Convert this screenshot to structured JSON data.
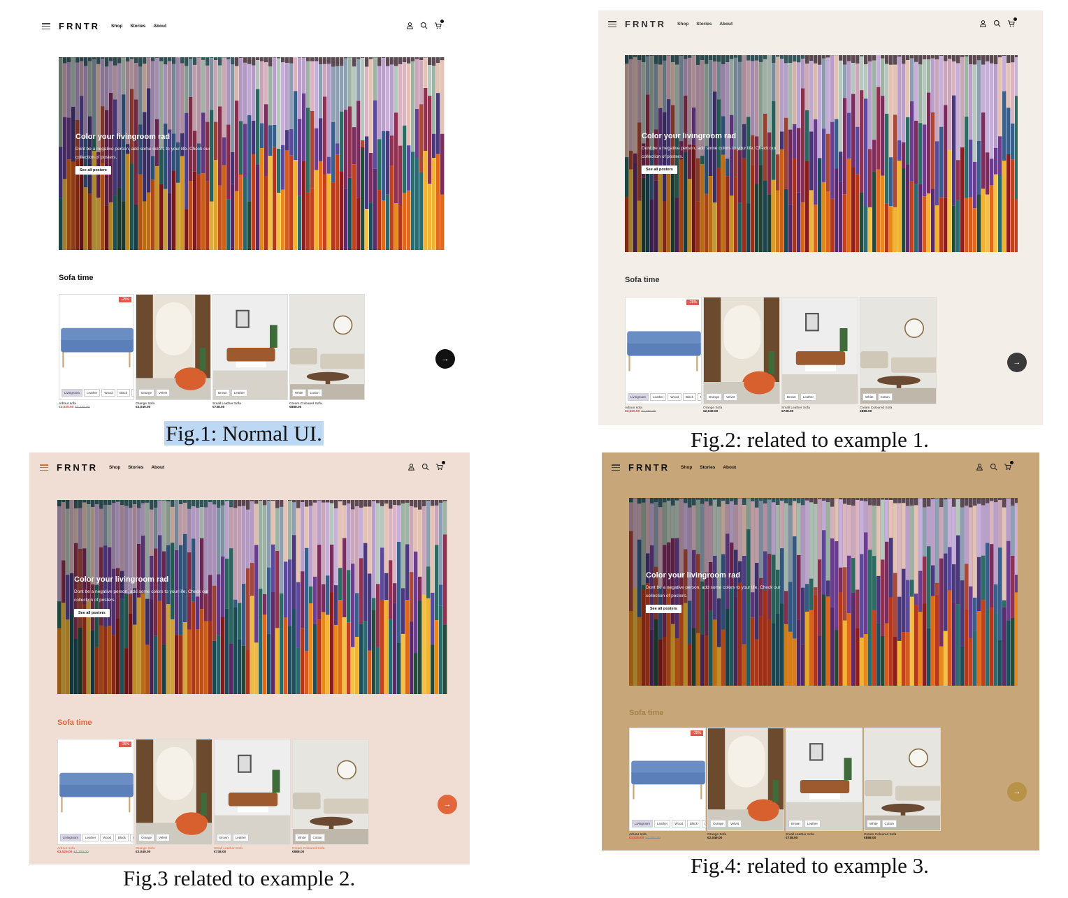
{
  "captions": [
    "Fig.1: Normal UI.",
    "Fig.2: related to example 1.",
    "Fig.3 related to example 2.",
    "Fig.4: related to example 3."
  ],
  "nav": {
    "logo": "FRNTR",
    "links": [
      "Shop",
      "Stories",
      "About"
    ],
    "icons": [
      "user-icon",
      "search-icon",
      "cart-icon"
    ]
  },
  "hero": {
    "title": "Color your livingroom rad",
    "description": "Dont be a negative person, add some colors to your life. Check our collection of posters.",
    "button": "See all posters"
  },
  "section": {
    "title": "Sofa time"
  },
  "products": [
    {
      "name": "Arbour sofa",
      "price": "€3,525.00",
      "old_price": "€4,700.00",
      "badge": "-25%",
      "chips": [
        "Livingroom",
        "Leather",
        "Wood",
        "Black",
        "Pug"
      ]
    },
    {
      "name": "Orange Sofa",
      "price": "€2,049.00",
      "chips": [
        "Orange",
        "Velvet"
      ]
    },
    {
      "name": "Small Leather Sofa",
      "price": "€738.00",
      "chips": [
        "Brown",
        "Leather"
      ]
    },
    {
      "name": "Cream Coloured Sofa",
      "price": "€888.00",
      "chips": [
        "White",
        "Cotton"
      ]
    }
  ],
  "themes": [
    {
      "bg": "#ffffff",
      "accent": "#111111",
      "text": "#111111"
    },
    {
      "bg": "#f3efe8",
      "accent": "#333333",
      "text": "#333333"
    },
    {
      "bg": "#f0ddd3",
      "accent": "#e2683c",
      "text": "#111111"
    },
    {
      "bg": "#c7a67a",
      "accent": "#b89246",
      "text": "#111111"
    }
  ]
}
